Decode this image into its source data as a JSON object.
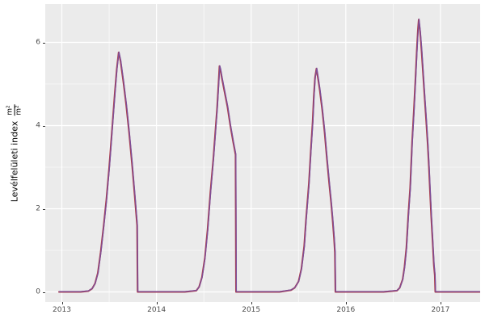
{
  "y_axis": {
    "title_text": "Levélfelületi index",
    "unit_numerator": "m²",
    "unit_denominator": "m²",
    "tick_labels": [
      "0",
      "2",
      "4",
      "6"
    ]
  },
  "x_axis": {
    "tick_labels": [
      "2013",
      "2014",
      "2015",
      "2016",
      "2017"
    ]
  },
  "colors": {
    "panel_background": "#ebebeb",
    "grid_major": "#ffffff",
    "grid_minor": "#ffffff",
    "axis_text": "#4d4d4d",
    "tick_mark": "#333333",
    "line_red": "#a93e4e",
    "line_purple": "#7d4f9b"
  },
  "chart_data": {
    "type": "line",
    "title": "",
    "xlabel": "",
    "ylabel": "Levélfelületi index m²/m²",
    "x_ticks": [
      2013,
      2014,
      2015,
      2016,
      2017
    ],
    "x_minor_ticks": [
      2013.5,
      2014.5,
      2015.5,
      2016.5
    ],
    "y_ticks": [
      0,
      2,
      4,
      6
    ],
    "y_minor_ticks": [
      1,
      3,
      5
    ],
    "xlim": [
      2012.83,
      2017.42
    ],
    "ylim": [
      -0.25,
      6.92
    ],
    "grid": "white major and minor gridlines on gray panel",
    "legend_position": "none",
    "note": "two nearly identical overlapping series (red beneath, purple on top) tracing the same seasonal LAI trajectory with abrupt harvest drops to zero",
    "peaks": [
      {
        "x": 2013.6,
        "y": 5.76
      },
      {
        "x": 2014.67,
        "y": 5.43
      },
      {
        "x": 2015.69,
        "y": 5.37
      },
      {
        "x": 2016.77,
        "y": 6.55
      }
    ],
    "series": [
      {
        "name": "series-red",
        "color": "#a93e4e"
      },
      {
        "name": "series-purple",
        "color": "#7d4f9b"
      }
    ],
    "points": [
      [
        2012.97,
        0
      ],
      [
        2013.1,
        0
      ],
      [
        2013.2,
        0
      ],
      [
        2013.28,
        0.02
      ],
      [
        2013.32,
        0.08
      ],
      [
        2013.35,
        0.2
      ],
      [
        2013.38,
        0.45
      ],
      [
        2013.41,
        0.95
      ],
      [
        2013.44,
        1.55
      ],
      [
        2013.47,
        2.2
      ],
      [
        2013.5,
        3.0
      ],
      [
        2013.53,
        3.9
      ],
      [
        2013.56,
        4.8
      ],
      [
        2013.58,
        5.35
      ],
      [
        2013.6,
        5.76
      ],
      [
        2013.62,
        5.55
      ],
      [
        2013.65,
        5.05
      ],
      [
        2013.68,
        4.5
      ],
      [
        2013.71,
        3.85
      ],
      [
        2013.74,
        3.1
      ],
      [
        2013.77,
        2.3
      ],
      [
        2013.795,
        1.6
      ],
      [
        2013.8,
        0
      ],
      [
        2013.9,
        0
      ],
      [
        2014.1,
        0
      ],
      [
        2014.3,
        0
      ],
      [
        2014.42,
        0.03
      ],
      [
        2014.45,
        0.12
      ],
      [
        2014.48,
        0.35
      ],
      [
        2014.51,
        0.8
      ],
      [
        2014.54,
        1.5
      ],
      [
        2014.57,
        2.4
      ],
      [
        2014.6,
        3.2
      ],
      [
        2014.62,
        3.8
      ],
      [
        2014.64,
        4.4
      ],
      [
        2014.655,
        5.0
      ],
      [
        2014.665,
        5.43
      ],
      [
        2014.675,
        5.35
      ],
      [
        2014.69,
        5.15
      ],
      [
        2014.72,
        4.8
      ],
      [
        2014.75,
        4.45
      ],
      [
        2014.78,
        4.0
      ],
      [
        2014.81,
        3.6
      ],
      [
        2014.835,
        3.3
      ],
      [
        2014.84,
        0
      ],
      [
        2014.95,
        0
      ],
      [
        2015.1,
        0
      ],
      [
        2015.3,
        0
      ],
      [
        2015.42,
        0.04
      ],
      [
        2015.46,
        0.1
      ],
      [
        2015.5,
        0.25
      ],
      [
        2015.53,
        0.55
      ],
      [
        2015.56,
        1.1
      ],
      [
        2015.58,
        1.75
      ],
      [
        2015.61,
        2.6
      ],
      [
        2015.63,
        3.4
      ],
      [
        2015.65,
        4.1
      ],
      [
        2015.662,
        4.7
      ],
      [
        2015.675,
        5.15
      ],
      [
        2015.69,
        5.37
      ],
      [
        2015.705,
        5.15
      ],
      [
        2015.725,
        4.85
      ],
      [
        2015.75,
        4.4
      ],
      [
        2015.775,
        3.85
      ],
      [
        2015.8,
        3.2
      ],
      [
        2015.825,
        2.6
      ],
      [
        2015.845,
        2.15
      ],
      [
        2015.86,
        1.75
      ],
      [
        2015.875,
        1.3
      ],
      [
        2015.885,
        0.95
      ],
      [
        2015.89,
        0
      ],
      [
        2016.0,
        0
      ],
      [
        2016.2,
        0
      ],
      [
        2016.4,
        0
      ],
      [
        2016.54,
        0.03
      ],
      [
        2016.57,
        0.1
      ],
      [
        2016.6,
        0.3
      ],
      [
        2016.62,
        0.6
      ],
      [
        2016.64,
        1.05
      ],
      [
        2016.66,
        1.85
      ],
      [
        2016.68,
        2.5
      ],
      [
        2016.7,
        3.6
      ],
      [
        2016.72,
        4.4
      ],
      [
        2016.735,
        5.1
      ],
      [
        2016.75,
        5.8
      ],
      [
        2016.762,
        6.3
      ],
      [
        2016.77,
        6.55
      ],
      [
        2016.785,
        6.25
      ],
      [
        2016.8,
        5.8
      ],
      [
        2016.815,
        5.3
      ],
      [
        2016.832,
        4.7
      ],
      [
        2016.85,
        4.1
      ],
      [
        2016.865,
        3.55
      ],
      [
        2016.878,
        3.0
      ],
      [
        2016.89,
        2.4
      ],
      [
        2016.903,
        1.8
      ],
      [
        2016.917,
        1.2
      ],
      [
        2016.93,
        0.65
      ],
      [
        2016.94,
        0.4
      ],
      [
        2016.945,
        0
      ],
      [
        2017.05,
        0
      ],
      [
        2017.2,
        0
      ],
      [
        2017.42,
        0
      ]
    ]
  }
}
